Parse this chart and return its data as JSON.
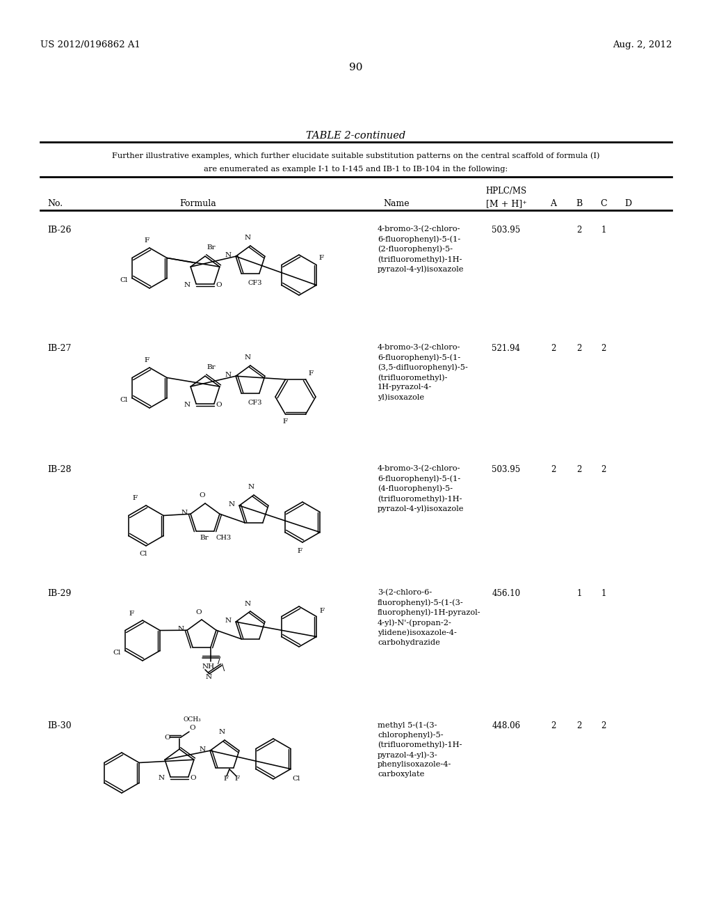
{
  "background_color": "#ffffff",
  "header_left": "US 2012/0196862 A1",
  "header_right": "Aug. 2, 2012",
  "page_number": "90",
  "table_title": "TABLE 2-continued",
  "table_note_line1": "Further illustrative examples, which further elucidate suitable substitution patterns on the central scaffold of formula (I)",
  "table_note_line2": "are enumerated as example I-1 to I-145 and IB-1 to IB-104 in the following:",
  "rows": [
    {
      "no": "IB-26",
      "name": "4-bromo-3-(2-chloro-\n6-fluorophenyl)-5-(1-\n(2-fluorophenyl)-5-\n(trifluoromethyl)-1H-\npyrazol-4-yl)isoxazole",
      "mz": "503.95",
      "A": "",
      "B": "2",
      "C": "1",
      "D": "",
      "ytop": 318
    },
    {
      "no": "IB-27",
      "name": "4-bromo-3-(2-chloro-\n6-fluorophenyl)-5-(1-\n(3,5-difluorophenyl)-5-\n(trifluoromethyl)-\n1H-pyrazol-4-\nyl)isoxazole",
      "mz": "521.94",
      "A": "2",
      "B": "2",
      "C": "2",
      "D": "",
      "ytop": 488
    },
    {
      "no": "IB-28",
      "name": "4-bromo-3-(2-chloro-\n6-fluorophenyl)-5-(1-\n(4-fluorophenyl)-5-\n(trifluoromethyl)-1H-\npyrazol-4-yl)isoxazole",
      "mz": "503.95",
      "A": "2",
      "B": "2",
      "C": "2",
      "D": "",
      "ytop": 662
    },
    {
      "no": "IB-29",
      "name": "3-(2-chloro-6-\nfluorophenyl)-5-(1-(3-\nfluorophenyl)-1H-pyrazol-\n4-yl)-N'-(propan-2-\nylidene)isoxazole-4-\ncarbohydrazide",
      "mz": "456.10",
      "A": "",
      "B": "1",
      "C": "1",
      "D": "",
      "ytop": 840
    },
    {
      "no": "IB-30",
      "name": "methyl 5-(1-(3-\nchlorophenyl)-5-\n(trifluoromethyl)-1H-\npyrazol-4-yl)-3-\nphenylisoxazole-4-\ncarboxylate",
      "mz": "448.06",
      "A": "2",
      "B": "2",
      "C": "2",
      "D": "",
      "ytop": 1030
    }
  ]
}
